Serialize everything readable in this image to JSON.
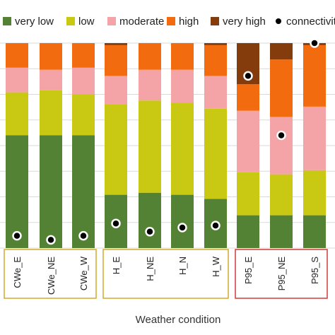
{
  "chart_data": {
    "type": "bar",
    "stacked": true,
    "percent_stacked": true,
    "xlabel": "Weather condition",
    "ylim": [
      0,
      100
    ],
    "grid": true,
    "legend_position": "top",
    "categories": [
      "CWe_E",
      "CWe_NE",
      "CWe_W",
      "H_E",
      "H_NE",
      "H_N",
      "H_W",
      "P95_E",
      "P95_NE",
      "P95_S"
    ],
    "series": [
      {
        "name": "very low",
        "color": "#548235",
        "values": [
          55,
          55,
          55,
          26,
          27,
          26,
          24,
          16,
          16,
          16
        ]
      },
      {
        "name": "low",
        "color": "#c9c914",
        "values": [
          21,
          22,
          20,
          44,
          45,
          45,
          44,
          21,
          20,
          22
        ]
      },
      {
        "name": "moderate",
        "color": "#f4a3a6",
        "values": [
          12,
          10,
          13,
          14,
          15,
          16,
          16,
          30,
          28,
          31
        ]
      },
      {
        "name": "high",
        "color": "#f26b0f",
        "values": [
          12,
          13,
          12,
          15,
          13,
          13,
          15,
          13,
          28,
          30
        ]
      },
      {
        "name": "very high",
        "color": "#843c0c",
        "values": [
          0,
          0,
          0,
          1,
          0,
          0,
          1,
          20,
          8,
          1
        ]
      }
    ],
    "connectivity": {
      "name": "connectivity",
      "values": [
        6,
        4,
        6,
        12,
        8,
        10,
        11,
        84,
        55,
        100
      ]
    },
    "groups": [
      {
        "border_color": "#d4aa2a",
        "members": [
          "CWe_E",
          "CWe_NE",
          "CWe_W"
        ]
      },
      {
        "border_color": "#d4aa2a",
        "members": [
          "H_E",
          "H_NE",
          "H_N",
          "H_W"
        ]
      },
      {
        "border_color": "#d43a3a",
        "members": [
          "P95_E",
          "P95_NE",
          "P95_S"
        ]
      }
    ]
  }
}
